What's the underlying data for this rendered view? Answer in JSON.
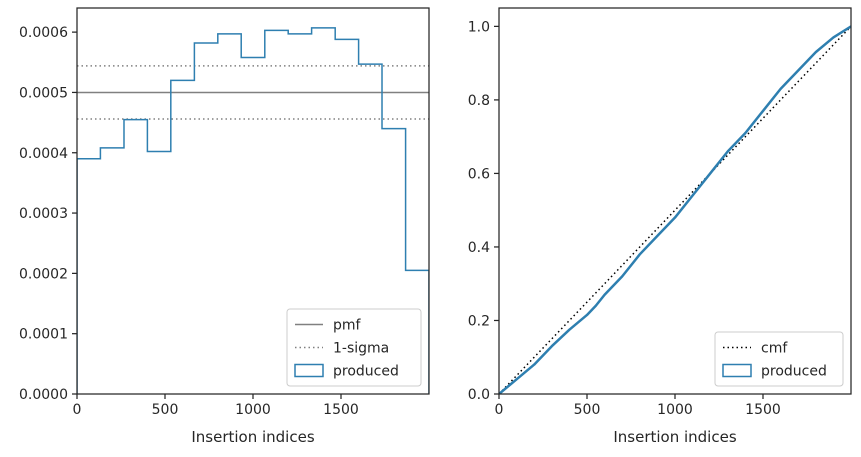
{
  "chart_data": [
    {
      "type": "line",
      "xlabel": "Insertion indices",
      "ylabel": "",
      "xlim": [
        0,
        2000
      ],
      "ylim": [
        0,
        0.00064
      ],
      "xticks": [
        0,
        500,
        1000,
        1500
      ],
      "xtick_labels": [
        "0",
        "500",
        "1000",
        "1500"
      ],
      "yticks": [
        0,
        0.0001,
        0.0002,
        0.0003,
        0.0004,
        0.0005,
        0.0006
      ],
      "ytick_labels": [
        "0.0000",
        "0.0001",
        "0.0002",
        "0.0003",
        "0.0004",
        "0.0005",
        "0.0006"
      ],
      "grid": false,
      "legend_position": "lower-right",
      "pmf": 0.0005,
      "sigma_band": [
        0.000456,
        0.000544
      ],
      "histogram": {
        "bin_edges": [
          0,
          133,
          267,
          400,
          533,
          667,
          800,
          933,
          1067,
          1200,
          1333,
          1467,
          1600,
          1733,
          1867,
          2000
        ],
        "values": [
          0.00039,
          0.000408,
          0.000455,
          0.000402,
          0.00052,
          0.000582,
          0.000597,
          0.000558,
          0.000603,
          0.000597,
          0.000607,
          0.000588,
          0.000547,
          0.00044,
          0.000205
        ]
      },
      "series": [
        {
          "name": "pmf",
          "color": "#808080",
          "style": "solid"
        },
        {
          "name": "1-sigma",
          "color": "#808080",
          "style": "dotted"
        },
        {
          "name": "produced",
          "color": "#2e7fb0",
          "style": "step"
        }
      ]
    },
    {
      "type": "line",
      "xlabel": "Insertion indices",
      "ylabel": "",
      "xlim": [
        0,
        2000
      ],
      "ylim": [
        0,
        1.05
      ],
      "xticks": [
        0,
        500,
        1000,
        1500
      ],
      "xtick_labels": [
        "0",
        "500",
        "1000",
        "1500"
      ],
      "yticks": [
        0,
        0.2,
        0.4,
        0.6,
        0.8,
        1.0
      ],
      "ytick_labels": [
        "0.0",
        "0.2",
        "0.4",
        "0.6",
        "0.8",
        "1.0"
      ],
      "grid": false,
      "legend_position": "lower-right",
      "series": [
        {
          "name": "cmf",
          "color": "#000000",
          "style": "dotted",
          "x": [
            0,
            2000
          ],
          "y": [
            0,
            1.0
          ]
        },
        {
          "name": "produced",
          "color": "#2e7fb0",
          "style": "solid",
          "x": [
            0,
            100,
            200,
            300,
            400,
            500,
            550,
            600,
            700,
            800,
            900,
            1000,
            1100,
            1200,
            1300,
            1400,
            1500,
            1600,
            1700,
            1800,
            1900,
            2000
          ],
          "y": [
            0,
            0.04,
            0.08,
            0.13,
            0.175,
            0.215,
            0.24,
            0.27,
            0.32,
            0.38,
            0.43,
            0.48,
            0.54,
            0.6,
            0.66,
            0.71,
            0.77,
            0.83,
            0.88,
            0.93,
            0.97,
            1.0
          ]
        }
      ]
    }
  ]
}
